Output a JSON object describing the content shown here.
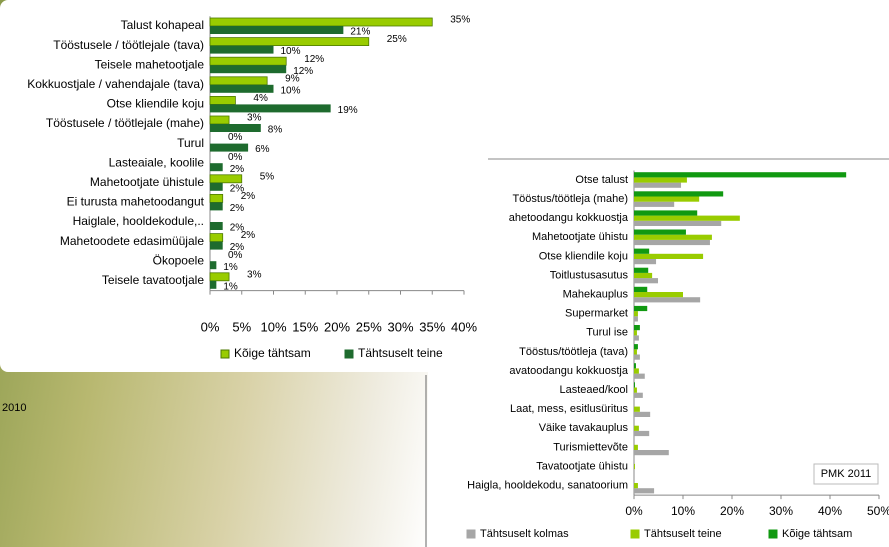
{
  "caption": "2010",
  "chart_data": [
    {
      "type": "bar",
      "orientation": "horizontal",
      "categories": [
        "Talust kohapeal",
        "Tööstusele / töötlejale (tava)",
        "Teisele mahetootjale",
        "Kokkuostjale / vahendajale (tava)",
        "Otse kliendile koju",
        "Tööstusele / töötlejale (mahe)",
        "Turul",
        "Lasteaiale, koolile",
        "Mahetootjate ühistule",
        "Ei turusta mahetoodangut",
        "Haiglale, hooldekodule,..",
        "Mahetoodete edasimüüjale",
        "Ökopoele",
        "Teisele tavatootjale"
      ],
      "series": [
        {
          "name": "Kõige tähtsam",
          "color": "#99cc00",
          "values": [
            35,
            25,
            12,
            9,
            4,
            3,
            0,
            0,
            5,
            2,
            0,
            2,
            0,
            3
          ],
          "value_labels": [
            "35%",
            "25%",
            "12%",
            "9%",
            "4%",
            "3%",
            "0%",
            "0%",
            "5%",
            "2%",
            null,
            "2%",
            "0%",
            "3%"
          ]
        },
        {
          "name": "Tähtsuselt teine",
          "color": "#1e6b2e",
          "values": [
            21,
            10,
            12,
            10,
            19,
            8,
            6,
            2,
            2,
            2,
            2,
            2,
            1,
            1
          ],
          "value_labels": [
            "21%",
            "10%",
            "12%",
            "10%",
            "19%",
            "8%",
            "6%",
            "2%",
            "2%",
            "2%",
            "2%",
            "2%",
            "1%",
            "1%"
          ]
        }
      ],
      "xlim": [
        0,
        40
      ],
      "xticks": [
        {
          "value": 0,
          "label": "0%"
        },
        {
          "value": 5,
          "label": "5%"
        },
        {
          "value": 10,
          "label": "10%"
        },
        {
          "value": 15,
          "label": "15%"
        },
        {
          "value": 20,
          "label": "20%"
        },
        {
          "value": 25,
          "label": "25%"
        },
        {
          "value": 30,
          "label": "30%"
        },
        {
          "value": 35,
          "label": "35%"
        },
        {
          "value": 40,
          "label": "40%"
        }
      ],
      "grid": false
    },
    {
      "type": "bar",
      "orientation": "horizontal",
      "annotation": "PMK 2011",
      "categories": [
        "Otse talust",
        "Tööstus/töötleja (mahe)",
        "ahetoodangu kokkuostja",
        "Mahetootjate ühistu",
        "Otse kliendile koju",
        "Toitlustusasutus",
        "Mahekauplus",
        "Supermarket",
        "Turul ise",
        "Tööstus/töötleja (tava)",
        "avatoodangu kokkuostja",
        "Lasteaed/kool",
        "Laat, mess, esitlusüritus",
        "Väike tavakauplus",
        "Turismiettevõte",
        "Tavatootjate ühistu",
        "Haigla, hooldekodu, sanatoorium"
      ],
      "series": [
        {
          "name": "Tähtsuselt kolmas",
          "color": "#a6a6a6",
          "values": [
            9.6,
            8.2,
            17.8,
            15.5,
            4.5,
            4.9,
            13.5,
            0.8,
            1.0,
            1.2,
            2.2,
            1.8,
            3.3,
            3.1,
            7.1,
            0,
            4.1
          ]
        },
        {
          "name": "Tähtsuselt teine",
          "color": "#99cc00",
          "values": [
            10.8,
            13.3,
            21.6,
            15.9,
            14.1,
            3.7,
            10,
            0.8,
            0.6,
            0.6,
            1.0,
            0.6,
            1.2,
            1.0,
            0.8,
            0.2,
            0.8
          ]
        },
        {
          "name": "Kõige tähtsam",
          "color": "#119911",
          "values": [
            43.3,
            18.2,
            12.9,
            10.6,
            3.1,
            2.9,
            2.7,
            2.7,
            1.2,
            0.8,
            0.4,
            0.2,
            0,
            0,
            0,
            0,
            0
          ]
        }
      ],
      "xlim": [
        0,
        50
      ],
      "xticks": [
        {
          "value": 0,
          "label": "0%"
        },
        {
          "value": 10,
          "label": "10%"
        },
        {
          "value": 20,
          "label": "20%"
        },
        {
          "value": 30,
          "label": "30%"
        },
        {
          "value": 40,
          "label": "40%"
        },
        {
          "value": 50,
          "label": "50%"
        }
      ],
      "grid": false
    }
  ]
}
